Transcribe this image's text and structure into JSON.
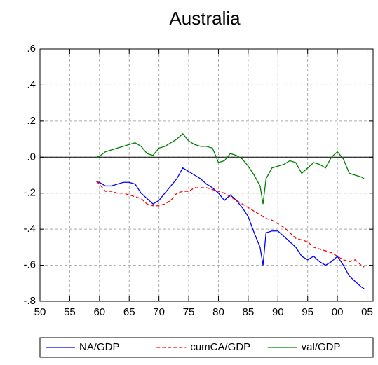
{
  "chart_data": {
    "type": "line",
    "title": "Australia",
    "x": [
      1959.5,
      1960,
      1961,
      1962,
      1963,
      1964,
      1965,
      1966,
      1967,
      1968,
      1969,
      1970,
      1971,
      1972,
      1973,
      1974,
      1975,
      1976,
      1977,
      1978,
      1979,
      1980,
      1981,
      1982,
      1983,
      1984,
      1985,
      1986,
      1987,
      1987.5,
      1988,
      1989,
      1990,
      1991,
      1992,
      1993,
      1994,
      1995,
      1996,
      1997,
      1998,
      1999,
      2000,
      2001,
      2002,
      2003,
      2004,
      2004.5
    ],
    "series": [
      {
        "name": "NA/GDP",
        "color": "#0000ff",
        "dashed": false,
        "values": [
          -0.137,
          -0.14,
          -0.16,
          -0.16,
          -0.15,
          -0.14,
          -0.14,
          -0.15,
          -0.2,
          -0.23,
          -0.26,
          -0.24,
          -0.2,
          -0.16,
          -0.12,
          -0.06,
          -0.08,
          -0.1,
          -0.12,
          -0.15,
          -0.17,
          -0.2,
          -0.24,
          -0.21,
          -0.24,
          -0.28,
          -0.33,
          -0.42,
          -0.5,
          -0.6,
          -0.42,
          -0.41,
          -0.41,
          -0.44,
          -0.47,
          -0.5,
          -0.55,
          -0.57,
          -0.55,
          -0.58,
          -0.6,
          -0.58,
          -0.55,
          -0.6,
          -0.66,
          -0.69,
          -0.72,
          -0.73
        ]
      },
      {
        "name": "cumCA/GDP",
        "color": "#ff0000",
        "dashed": true,
        "values": [
          -0.135,
          -0.15,
          -0.19,
          -0.19,
          -0.2,
          -0.2,
          -0.21,
          -0.22,
          -0.23,
          -0.26,
          -0.27,
          -0.27,
          -0.26,
          -0.24,
          -0.2,
          -0.19,
          -0.19,
          -0.17,
          -0.17,
          -0.17,
          -0.18,
          -0.19,
          -0.2,
          -0.22,
          -0.24,
          -0.26,
          -0.28,
          -0.3,
          -0.32,
          -0.33,
          -0.34,
          -0.35,
          -0.37,
          -0.39,
          -0.42,
          -0.45,
          -0.46,
          -0.47,
          -0.5,
          -0.51,
          -0.52,
          -0.53,
          -0.55,
          -0.57,
          -0.58,
          -0.57,
          -0.6,
          -0.61
        ]
      },
      {
        "name": "val/GDP",
        "color": "#008000",
        "dashed": false,
        "values": [
          0.0,
          0.005,
          0.03,
          0.04,
          0.05,
          0.06,
          0.07,
          0.08,
          0.06,
          0.02,
          0.01,
          0.05,
          0.06,
          0.08,
          0.1,
          0.13,
          0.09,
          0.07,
          0.06,
          0.06,
          0.05,
          -0.03,
          -0.02,
          0.02,
          0.01,
          -0.01,
          -0.05,
          -0.1,
          -0.16,
          -0.26,
          -0.12,
          -0.06,
          -0.05,
          -0.04,
          -0.02,
          -0.03,
          -0.09,
          -0.06,
          -0.03,
          -0.04,
          -0.06,
          0.0,
          0.03,
          -0.01,
          -0.09,
          -0.1,
          -0.11,
          -0.12
        ]
      }
    ],
    "xlim": [
      1950,
      2006
    ],
    "xticks": [
      {
        "value": 1950,
        "label": "50"
      },
      {
        "value": 1955,
        "label": "55"
      },
      {
        "value": 1960,
        "label": "60"
      },
      {
        "value": 1965,
        "label": "65"
      },
      {
        "value": 1970,
        "label": "70"
      },
      {
        "value": 1975,
        "label": "75"
      },
      {
        "value": 1980,
        "label": "80"
      },
      {
        "value": 1985,
        "label": "85"
      },
      {
        "value": 1990,
        "label": "90"
      },
      {
        "value": 1995,
        "label": "95"
      },
      {
        "value": 2000,
        "label": "00"
      },
      {
        "value": 2005,
        "label": "05"
      }
    ],
    "ylim": [
      -0.8,
      0.6
    ],
    "yticks": [
      {
        "value": -0.8,
        "label": "-.8"
      },
      {
        "value": -0.6,
        "label": "-.6"
      },
      {
        "value": -0.4,
        "label": "-.4"
      },
      {
        "value": -0.2,
        "label": "-.2"
      },
      {
        "value": 0,
        "label": ".0"
      },
      {
        "value": 0.2,
        "label": ".2"
      },
      {
        "value": 0.4,
        "label": ".4"
      },
      {
        "value": 0.6,
        "label": ".6"
      }
    ],
    "grid": true,
    "zero_line": true,
    "legend": "bottom"
  }
}
